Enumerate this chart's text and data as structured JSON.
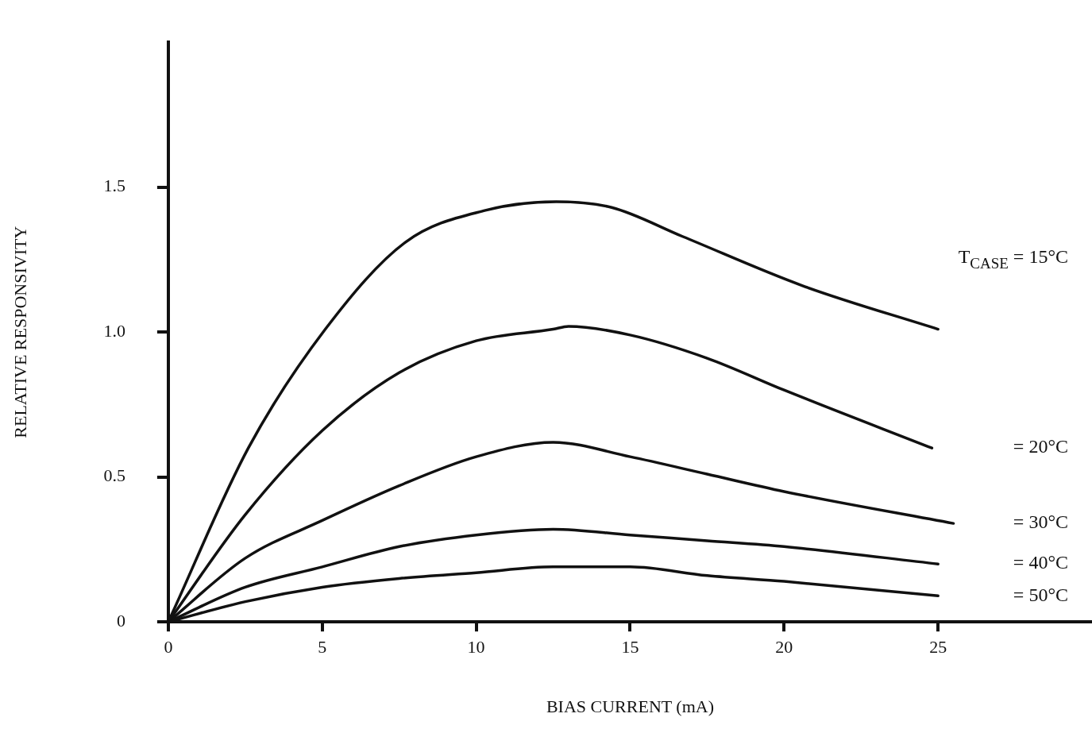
{
  "chart_data": {
    "type": "line",
    "xlabel": "BIAS CURRENT (mA)",
    "ylabel": "RELATIVE RESPONSIVITY",
    "xlim": [
      0,
      30
    ],
    "ylim": [
      0,
      2
    ],
    "xticks": [
      0,
      5,
      10,
      15,
      20,
      25
    ],
    "yticks": [
      0,
      {
        "value": 0.5,
        "label": "0.5"
      },
      {
        "value": 1,
        "label": "1.0"
      },
      1.5
    ],
    "grid": false,
    "legend": false,
    "marker": "none",
    "line_style": "solid",
    "series": [
      {
        "name": "T$_{CASE}$ = 15°C",
        "color": "#111111",
        "x": [
          0,
          2.6,
          5.1,
          7.7,
          10.3,
          12.6,
          14.4,
          16.7,
          20.6,
          25
        ],
        "values": [
          0,
          0.6,
          1.01,
          1.31,
          1.42,
          1.45,
          1.43,
          1.33,
          1.16,
          1.01
        ]
      },
      {
        "name": "= 20°C",
        "color": "#111111",
        "x": [
          0,
          2.5,
          5,
          7.5,
          10,
          12.5,
          13,
          15,
          17.5,
          20,
          24.8
        ],
        "values": [
          0,
          0.37,
          0.66,
          0.86,
          0.97,
          1.01,
          1.02,
          0.99,
          0.91,
          0.8,
          0.6
        ]
      },
      {
        "name": "= 30°C",
        "color": "#111111",
        "x": [
          0,
          2.5,
          5,
          7.5,
          10,
          12.5,
          15,
          17.5,
          20,
          25.5
        ],
        "values": [
          0,
          0.22,
          0.35,
          0.47,
          0.57,
          0.62,
          0.57,
          0.51,
          0.45,
          0.34
        ]
      },
      {
        "name": "= 40°C",
        "color": "#111111",
        "x": [
          0,
          2.5,
          5,
          7.5,
          10,
          12.5,
          15,
          17.5,
          20,
          25
        ],
        "values": [
          0,
          0.12,
          0.19,
          0.26,
          0.3,
          0.32,
          0.3,
          0.28,
          0.26,
          0.2
        ]
      },
      {
        "name": "= 50°C",
        "color": "#111111",
        "x": [
          0,
          2.5,
          5,
          7.5,
          10,
          12.5,
          15,
          17.5,
          20,
          25
        ],
        "values": [
          0,
          0.07,
          0.12,
          0.15,
          0.17,
          0.19,
          0.19,
          0.16,
          0.14,
          0.09
        ]
      }
    ]
  }
}
